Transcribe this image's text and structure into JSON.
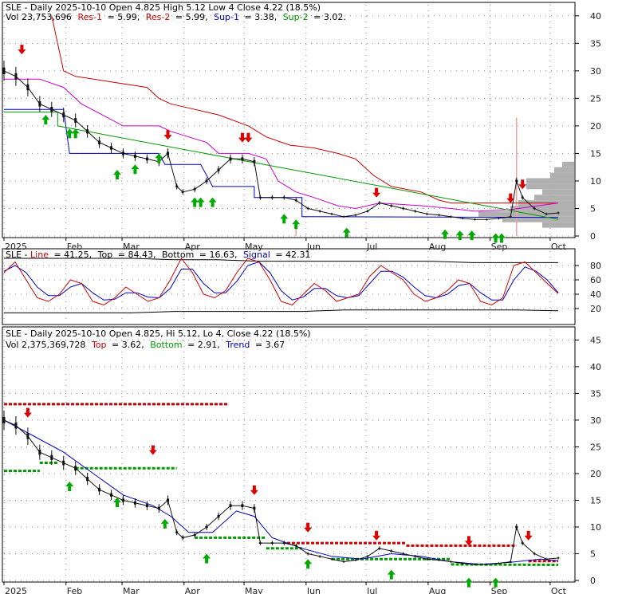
{
  "colors": {
    "price": "#111111",
    "res": "#cc0000",
    "res2": "#cc00cc",
    "sup1": "#0000cc",
    "sup2": "#009900",
    "trend": "#0000cc",
    "topline": "#cc0000",
    "bottomline": "#009900",
    "volprofile": "#b0b0b0",
    "grid": "#888888",
    "spike": "#f4a0a0"
  },
  "panel1": {
    "title": "SLE - Daily 2025-10-10 Open 4.825  High 5.12  Low 4  Close 4.22 (18.5%)",
    "legend": {
      "vol": "Vol 23,753,696",
      "res1_label": "Res-1",
      "res1_value": "= 5.99,",
      "res2_label": "Res-2",
      "res2_value": "= 5.99,",
      "sup1_label": "Sup-1",
      "sup1_value": "= 3.38,",
      "sup2_label": "Sup-2",
      "sup2_value": "= 3.02."
    }
  },
  "panel2": {
    "title_prefix": "SLE - ",
    "line_label": "Line",
    "line_value": "= 41.25,",
    "top_label": "Top",
    "top_value": "= 84.43,",
    "bottom_label": "Bottom",
    "bottom_value": "= 16.63,",
    "signal_label": "Signal",
    "signal_value": "= 42.31"
  },
  "panel3": {
    "title": "SLE - Daily 2025-10-10 Open 4.825, Hi 5.12, Lo 4, Close 4.22 (18.5%)",
    "vol": "Vol 2,375,369,728",
    "top_label": "Top",
    "top_value": "= 3.62,",
    "bottom_label": "Bottom",
    "bottom_value": "= 2.91,",
    "trend_label": "Trend",
    "trend_value": "= 3.67"
  },
  "chart_data": [
    {
      "type": "line",
      "title": "SLE - Daily 2025-10-10 Open 4.825  High 5.12  Low 4  Close 4.22 (18.5%)",
      "x_labels": [
        "2025",
        "Feb",
        "Mar",
        "Apr",
        "May",
        "Jun",
        "Jul",
        "Aug",
        "Sep",
        "Oct"
      ],
      "y_ticks": [
        0,
        5,
        10,
        15,
        20,
        25,
        30,
        35,
        40
      ],
      "ylim": [
        0,
        42
      ],
      "series": [
        {
          "name": "Close",
          "points": [
            [
              0,
              30
            ],
            [
              4,
              29
            ],
            [
              8,
              27
            ],
            [
              12,
              24
            ],
            [
              16,
              23
            ],
            [
              20,
              22
            ],
            [
              24,
              21
            ],
            [
              28,
              19
            ],
            [
              32,
              17
            ],
            [
              36,
              16
            ],
            [
              40,
              15
            ],
            [
              44,
              14.5
            ],
            [
              48,
              14
            ],
            [
              52,
              13.5
            ],
            [
              55,
              15
            ],
            [
              58,
              9
            ],
            [
              60,
              8
            ],
            [
              64,
              8.5
            ],
            [
              68,
              10
            ],
            [
              72,
              12
            ],
            [
              76,
              14
            ],
            [
              80,
              14
            ],
            [
              84,
              13.5
            ],
            [
              86,
              7
            ],
            [
              90,
              7
            ],
            [
              94,
              7
            ],
            [
              98,
              6.5
            ],
            [
              102,
              5
            ],
            [
              106,
              4.5
            ],
            [
              110,
              4
            ],
            [
              114,
              3.5
            ],
            [
              118,
              3.8
            ],
            [
              122,
              4.5
            ],
            [
              126,
              6
            ],
            [
              130,
              5.5
            ],
            [
              134,
              5
            ],
            [
              138,
              4.5
            ],
            [
              142,
              4
            ],
            [
              146,
              3.8
            ],
            [
              150,
              3.5
            ],
            [
              154,
              3.2
            ],
            [
              158,
              3
            ],
            [
              162,
              3
            ],
            [
              166,
              3.2
            ],
            [
              170,
              3.5
            ],
            [
              172,
              10
            ],
            [
              174,
              7
            ],
            [
              178,
              5
            ],
            [
              182,
              4
            ],
            [
              186,
              4.2
            ]
          ]
        },
        {
          "name": "Res-1",
          "points": [
            [
              16,
              40
            ],
            [
              20,
              30
            ],
            [
              24,
              29
            ],
            [
              36,
              28
            ],
            [
              48,
              27
            ],
            [
              52,
              25
            ],
            [
              56,
              24
            ],
            [
              64,
              23
            ],
            [
              72,
              22
            ],
            [
              82,
              20
            ],
            [
              88,
              18
            ],
            [
              96,
              16.5
            ],
            [
              104,
              16
            ],
            [
              112,
              15
            ],
            [
              118,
              14
            ],
            [
              120,
              13
            ],
            [
              124,
              11
            ],
            [
              130,
              9
            ],
            [
              140,
              8
            ],
            [
              146,
              6.5
            ],
            [
              150,
              6
            ],
            [
              186,
              5.99
            ]
          ]
        },
        {
          "name": "Res-2",
          "points": [
            [
              0,
              28.5
            ],
            [
              12,
              28.5
            ],
            [
              20,
              27
            ],
            [
              26,
              24
            ],
            [
              40,
              20
            ],
            [
              52,
              20
            ],
            [
              56,
              19
            ],
            [
              68,
              17
            ],
            [
              72,
              15
            ],
            [
              82,
              15
            ],
            [
              88,
              14
            ],
            [
              92,
              10
            ],
            [
              98,
              8
            ],
            [
              104,
              7
            ],
            [
              112,
              5.5
            ],
            [
              118,
              5
            ],
            [
              126,
              6
            ],
            [
              140,
              5.5
            ],
            [
              150,
              5
            ],
            [
              158,
              4.5
            ],
            [
              170,
              4.8
            ],
            [
              186,
              5.99
            ]
          ]
        },
        {
          "name": "Sup-1",
          "points": [
            [
              0,
              23
            ],
            [
              20,
              23
            ],
            [
              22,
              15
            ],
            [
              52,
              15
            ],
            [
              54,
              13
            ],
            [
              66,
              13
            ],
            [
              70,
              9
            ],
            [
              84,
              9
            ],
            [
              84,
              7
            ],
            [
              100,
              7
            ],
            [
              100,
              3.5
            ],
            [
              186,
              3.38
            ]
          ]
        },
        {
          "name": "Sup-2",
          "points": [
            [
              0,
              22.5
            ],
            [
              18,
              22.5
            ],
            [
              18,
              20
            ],
            [
              186,
              3.02
            ]
          ]
        }
      ]
    },
    {
      "type": "line",
      "title": "SLE - Line = 41.25, Top = 84.43, Bottom = 16.63, Signal = 42.31",
      "y_ticks": [
        20,
        40,
        60,
        80
      ],
      "ylim": [
        0,
        100
      ],
      "series": [
        {
          "name": "Line",
          "values": [
            70,
            85,
            60,
            35,
            30,
            40,
            60,
            55,
            30,
            25,
            35,
            50,
            40,
            30,
            35,
            60,
            90,
            70,
            40,
            35,
            45,
            70,
            90,
            85,
            60,
            30,
            25,
            40,
            55,
            45,
            30,
            35,
            40,
            65,
            80,
            70,
            60,
            40,
            30,
            35,
            45,
            60,
            55,
            30,
            25,
            35,
            80,
            85,
            70,
            55,
            41
          ]
        },
        {
          "name": "Signal",
          "values": [
            72,
            80,
            70,
            50,
            38,
            38,
            50,
            55,
            42,
            32,
            33,
            42,
            42,
            36,
            35,
            48,
            75,
            75,
            55,
            42,
            42,
            58,
            80,
            85,
            70,
            45,
            32,
            36,
            48,
            48,
            38,
            35,
            38,
            55,
            72,
            72,
            64,
            50,
            38,
            35,
            40,
            52,
            55,
            42,
            32,
            32,
            60,
            78,
            72,
            60,
            42
          ]
        },
        {
          "name": "Top",
          "values": [
            90,
            90,
            90,
            90,
            88,
            88,
            86,
            86,
            86,
            86,
            86,
            84,
            84,
            84
          ]
        },
        {
          "name": "Bottom",
          "values": [
            14,
            14,
            14,
            14,
            16,
            16,
            16,
            16,
            18,
            18,
            18,
            18,
            18,
            17
          ]
        }
      ]
    },
    {
      "type": "line",
      "title": "SLE - Daily 2025-10-10 Open 4.825, Hi 5.12, Lo 4, Close 4.22 (18.5%)",
      "x_labels": [
        "2025",
        "Feb",
        "Mar",
        "Apr",
        "May",
        "Jun",
        "Jul",
        "Aug",
        "Sep",
        "Oct"
      ],
      "y_ticks": [
        0,
        5,
        10,
        15,
        20,
        25,
        30,
        35,
        40,
        45
      ],
      "ylim": [
        0,
        47
      ],
      "series": [
        {
          "name": "Close",
          "points": [
            [
              0,
              30
            ],
            [
              4,
              29
            ],
            [
              8,
              27
            ],
            [
              12,
              24
            ],
            [
              16,
              23
            ],
            [
              20,
              22
            ],
            [
              24,
              21
            ],
            [
              28,
              19
            ],
            [
              32,
              17
            ],
            [
              36,
              16
            ],
            [
              40,
              15
            ],
            [
              44,
              14.5
            ],
            [
              48,
              14
            ],
            [
              52,
              13.5
            ],
            [
              55,
              15
            ],
            [
              58,
              9
            ],
            [
              60,
              8
            ],
            [
              64,
              8.5
            ],
            [
              68,
              10
            ],
            [
              72,
              12
            ],
            [
              76,
              14
            ],
            [
              80,
              14
            ],
            [
              84,
              13.5
            ],
            [
              86,
              7
            ],
            [
              90,
              7
            ],
            [
              94,
              7
            ],
            [
              98,
              6.5
            ],
            [
              102,
              5
            ],
            [
              106,
              4.5
            ],
            [
              110,
              4
            ],
            [
              114,
              3.5
            ],
            [
              118,
              3.8
            ],
            [
              122,
              4.5
            ],
            [
              126,
              6
            ],
            [
              130,
              5.5
            ],
            [
              134,
              5
            ],
            [
              138,
              4.5
            ],
            [
              142,
              4
            ],
            [
              146,
              3.8
            ],
            [
              150,
              3.5
            ],
            [
              154,
              3.2
            ],
            [
              158,
              3
            ],
            [
              162,
              3
            ],
            [
              166,
              3.2
            ],
            [
              170,
              3.5
            ],
            [
              172,
              10
            ],
            [
              174,
              7
            ],
            [
              178,
              5
            ],
            [
              182,
              4
            ],
            [
              186,
              4.2
            ]
          ]
        },
        {
          "name": "Trend",
          "points": [
            [
              0,
              30
            ],
            [
              10,
              27
            ],
            [
              20,
              24
            ],
            [
              30,
              20
            ],
            [
              40,
              16
            ],
            [
              50,
              14
            ],
            [
              56,
              12
            ],
            [
              62,
              9
            ],
            [
              70,
              9
            ],
            [
              78,
              13
            ],
            [
              84,
              12
            ],
            [
              90,
              8
            ],
            [
              100,
              6
            ],
            [
              110,
              4.5
            ],
            [
              120,
              4
            ],
            [
              130,
              5
            ],
            [
              140,
              4.5
            ],
            [
              150,
              3.5
            ],
            [
              160,
              3
            ],
            [
              170,
              3.4
            ],
            [
              180,
              4
            ],
            [
              186,
              3.67
            ]
          ]
        },
        {
          "name": "Top",
          "segments": [
            [
              [
                0,
                33
              ],
              [
                75,
                33
              ]
            ],
            [
              [
                95,
                7
              ],
              [
                135,
                7
              ]
            ],
            [
              [
                135,
                6.5
              ],
              [
                172,
                6.5
              ]
            ],
            [
              [
                176,
                3.62
              ],
              [
                186,
                3.62
              ]
            ]
          ]
        },
        {
          "name": "Bottom",
          "segments": [
            [
              [
                0,
                20.5
              ],
              [
                12,
                20.5
              ]
            ],
            [
              [
                12,
                22
              ],
              [
                18,
                22
              ]
            ],
            [
              [
                24,
                21
              ],
              [
                58,
                21
              ]
            ],
            [
              [
                64,
                8
              ],
              [
                88,
                8
              ]
            ],
            [
              [
                88,
                6
              ],
              [
                100,
                6
              ]
            ],
            [
              [
                110,
                4
              ],
              [
                150,
                4
              ]
            ],
            [
              [
                150,
                3
              ],
              [
                186,
                2.91
              ]
            ]
          ]
        }
      ]
    }
  ]
}
